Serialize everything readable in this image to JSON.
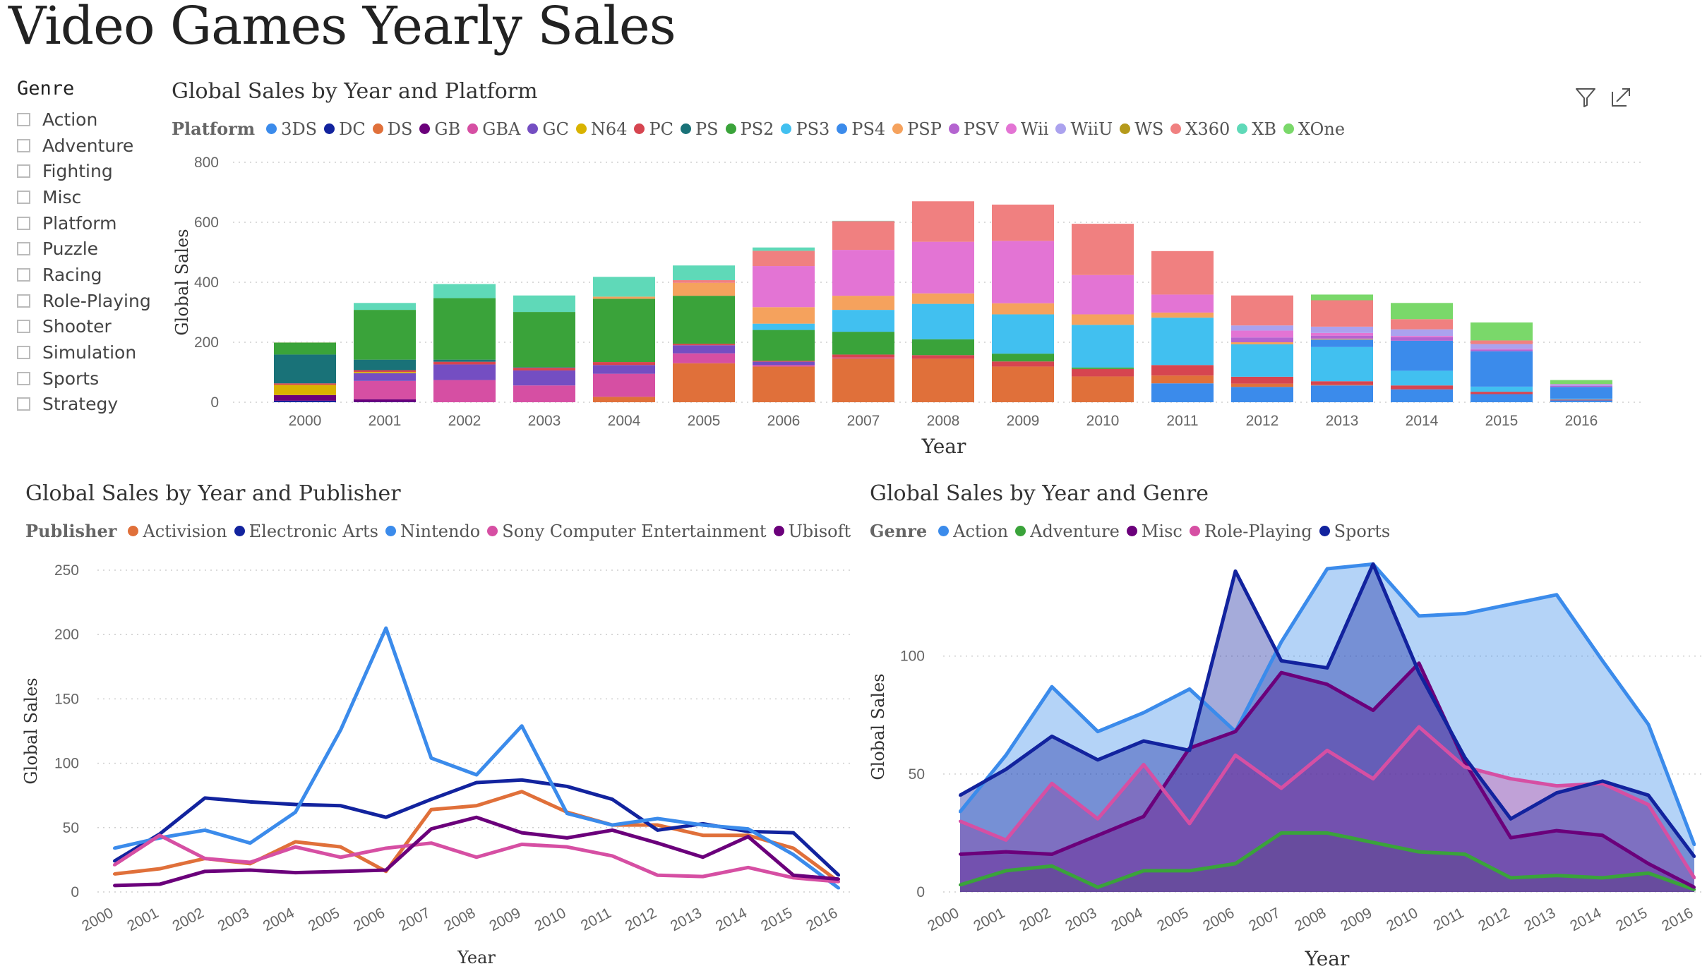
{
  "title": "Video Games Yearly Sales",
  "slicer": {
    "title": "Genre",
    "items": [
      "Action",
      "Adventure",
      "Fighting",
      "Misc",
      "Platform",
      "Puzzle",
      "Racing",
      "Role-Playing",
      "Shooter",
      "Simulation",
      "Sports",
      "Strategy"
    ]
  },
  "icons": [
    "filter-icon",
    "focus-mode-icon"
  ],
  "chart_data": [
    {
      "type": "bar",
      "stacked": true,
      "title": "Global Sales by Year and Platform",
      "legend_title": "Platform",
      "legend_position": "top",
      "xlabel": "Year",
      "ylabel": "Global Sales",
      "ylim": [
        0,
        800
      ],
      "yticks": [
        0,
        200,
        400,
        600,
        800
      ],
      "grid": true,
      "categories": [
        "2000",
        "2001",
        "2002",
        "2003",
        "2004",
        "2005",
        "2006",
        "2007",
        "2008",
        "2009",
        "2010",
        "2011",
        "2012",
        "2013",
        "2014",
        "2015",
        "2016"
      ],
      "series": [
        {
          "name": "3DS",
          "color": "#3b8beb",
          "values": [
            0,
            0,
            0,
            0,
            0,
            0,
            0,
            0,
            0,
            0,
            0,
            63,
            51,
            56,
            43,
            27,
            6
          ]
        },
        {
          "name": "DC",
          "color": "#12239e",
          "values": [
            5,
            1,
            0,
            0,
            0,
            0,
            0,
            0,
            0,
            0,
            0,
            0,
            0,
            0,
            0,
            0,
            0
          ]
        },
        {
          "name": "DS",
          "color": "#e0703a",
          "values": [
            0,
            0,
            0,
            0,
            18,
            130,
            119,
            146,
            145,
            119,
            86,
            26,
            11,
            2,
            0,
            0,
            0
          ]
        },
        {
          "name": "GB",
          "color": "#6b007b",
          "values": [
            19,
            9,
            0,
            0,
            0,
            0,
            0,
            0,
            0,
            0,
            0,
            0,
            0,
            0,
            0,
            0,
            0
          ]
        },
        {
          "name": "GBA",
          "color": "#d64fa3",
          "values": [
            0,
            61,
            74,
            56,
            77,
            33,
            5,
            3,
            0,
            0,
            0,
            0,
            0,
            0,
            0,
            0,
            0
          ]
        },
        {
          "name": "GC",
          "color": "#744ec2",
          "values": [
            0,
            26,
            52,
            50,
            29,
            27,
            11,
            0,
            0,
            0,
            0,
            0,
            0,
            0,
            0,
            0,
            0
          ]
        },
        {
          "name": "N64",
          "color": "#d9b300",
          "values": [
            34,
            4,
            0,
            0,
            0,
            0,
            0,
            0,
            0,
            0,
            0,
            0,
            0,
            0,
            0,
            0,
            0
          ]
        },
        {
          "name": "PC",
          "color": "#d64550",
          "values": [
            5,
            6,
            9,
            9,
            10,
            5,
            3,
            10,
            12,
            17,
            25,
            35,
            23,
            12,
            13,
            8,
            3
          ]
        },
        {
          "name": "PS",
          "color": "#197278",
          "values": [
            96,
            35,
            7,
            2,
            0,
            0,
            0,
            0,
            0,
            0,
            0,
            0,
            0,
            0,
            0,
            0,
            0
          ]
        },
        {
          "name": "PS2",
          "color": "#3aa33a",
          "values": [
            39,
            166,
            205,
            184,
            211,
            160,
            103,
            76,
            53,
            26,
            5,
            0,
            0,
            0,
            0,
            0,
            0
          ]
        },
        {
          "name": "PS3",
          "color": "#41c0f0",
          "values": [
            0,
            0,
            0,
            0,
            0,
            0,
            21,
            73,
            118,
            131,
            142,
            158,
            108,
            114,
            49,
            17,
            3
          ]
        },
        {
          "name": "PS4",
          "color": "#3b8beb",
          "values": [
            0,
            0,
            0,
            0,
            0,
            0,
            0,
            0,
            0,
            0,
            0,
            0,
            0,
            25,
            100,
            118,
            39
          ]
        },
        {
          "name": "PSP",
          "color": "#f5a25d",
          "values": [
            0,
            0,
            0,
            0,
            7,
            43,
            55,
            47,
            35,
            37,
            35,
            17,
            7,
            3,
            0,
            0,
            0
          ]
        },
        {
          "name": "PSV",
          "color": "#b464d0",
          "values": [
            0,
            0,
            0,
            0,
            0,
            0,
            0,
            0,
            0,
            0,
            0,
            0,
            16,
            10,
            12,
            6,
            4
          ]
        },
        {
          "name": "Wii",
          "color": "#e374d4",
          "values": [
            0,
            0,
            0,
            0,
            0,
            0,
            137,
            153,
            172,
            208,
            131,
            60,
            23,
            9,
            4,
            2,
            0
          ]
        },
        {
          "name": "WiiU",
          "color": "#aba2ee",
          "values": [
            0,
            0,
            0,
            0,
            0,
            0,
            0,
            0,
            0,
            0,
            0,
            0,
            17,
            21,
            22,
            16,
            5
          ]
        },
        {
          "name": "WS",
          "color": "#b59a1b",
          "values": [
            1,
            0,
            0,
            0,
            0,
            0,
            0,
            0,
            0,
            0,
            0,
            0,
            0,
            0,
            0,
            0,
            0
          ]
        },
        {
          "name": "X360",
          "color": "#f08080",
          "values": [
            0,
            0,
            0,
            0,
            0,
            9,
            51,
            96,
            135,
            121,
            171,
            145,
            100,
            88,
            34,
            12,
            1
          ]
        },
        {
          "name": "XB",
          "color": "#5fd9b8",
          "values": [
            1,
            23,
            47,
            55,
            66,
            49,
            11,
            1,
            0,
            0,
            0,
            0,
            0,
            0,
            0,
            0,
            0
          ]
        },
        {
          "name": "XOne",
          "color": "#7ad86a",
          "values": [
            0,
            0,
            0,
            0,
            0,
            0,
            0,
            0,
            0,
            0,
            0,
            0,
            0,
            19,
            54,
            60,
            13
          ]
        }
      ]
    },
    {
      "type": "line",
      "title": "Global Sales by Year and Publisher",
      "legend_title": "Publisher",
      "legend_position": "top",
      "xlabel": "Year",
      "ylabel": "Global Sales",
      "ylim": [
        0,
        250
      ],
      "yticks": [
        0,
        50,
        100,
        150,
        200,
        250
      ],
      "grid": true,
      "x": [
        "2000",
        "2001",
        "2002",
        "2003",
        "2004",
        "2005",
        "2006",
        "2007",
        "2008",
        "2009",
        "2010",
        "2011",
        "2012",
        "2013",
        "2014",
        "2015",
        "2016"
      ],
      "series": [
        {
          "name": "Activision",
          "color": "#e0703a",
          "values": [
            14,
            18,
            26,
            22,
            39,
            35,
            16,
            64,
            67,
            78,
            62,
            52,
            52,
            44,
            44,
            34,
            8
          ]
        },
        {
          "name": "Electronic Arts",
          "color": "#12239e",
          "values": [
            24,
            45,
            73,
            70,
            68,
            67,
            58,
            72,
            85,
            87,
            82,
            72,
            48,
            53,
            47,
            46,
            13
          ]
        },
        {
          "name": "Nintendo",
          "color": "#3b8beb",
          "values": [
            34,
            42,
            48,
            38,
            62,
            126,
            205,
            104,
            91,
            129,
            61,
            52,
            57,
            52,
            49,
            29,
            3
          ]
        },
        {
          "name": "Sony Computer Entertainment",
          "color": "#d64fa3",
          "values": [
            21,
            44,
            26,
            23,
            35,
            27,
            34,
            38,
            27,
            37,
            35,
            28,
            13,
            12,
            19,
            11,
            8
          ]
        },
        {
          "name": "Ubisoft",
          "color": "#6b007b",
          "values": [
            5,
            6,
            16,
            17,
            15,
            16,
            17,
            49,
            58,
            46,
            42,
            48,
            38,
            27,
            43,
            13,
            10
          ]
        }
      ]
    },
    {
      "type": "area",
      "title": "Global Sales by Year and Genre",
      "legend_title": "Genre",
      "legend_position": "top",
      "xlabel": "Year",
      "ylabel": "Global Sales",
      "ylim": [
        0,
        140
      ],
      "yticks": [
        0,
        50,
        100
      ],
      "grid": true,
      "x": [
        "2000",
        "2001",
        "2002",
        "2003",
        "2004",
        "2005",
        "2006",
        "2007",
        "2008",
        "2009",
        "2010",
        "2011",
        "2012",
        "2013",
        "2014",
        "2015",
        "2016"
      ],
      "series": [
        {
          "name": "Action",
          "color": "#3b8beb",
          "values": [
            34,
            58,
            87,
            68,
            76,
            86,
            68,
            106,
            137,
            139,
            117,
            118,
            122,
            126,
            98,
            71,
            20
          ]
        },
        {
          "name": "Adventure",
          "color": "#3aa33a",
          "values": [
            3,
            9,
            11,
            2,
            9,
            9,
            12,
            25,
            25,
            21,
            17,
            16,
            6,
            7,
            6,
            8,
            1
          ]
        },
        {
          "name": "Misc",
          "color": "#6b007b",
          "values": [
            16,
            17,
            16,
            24,
            32,
            61,
            68,
            93,
            88,
            77,
            97,
            55,
            23,
            26,
            24,
            12,
            2
          ]
        },
        {
          "name": "Role-Playing",
          "color": "#d64fa3",
          "values": [
            30,
            22,
            46,
            31,
            54,
            29,
            58,
            44,
            60,
            48,
            70,
            53,
            48,
            45,
            46,
            37,
            6
          ]
        },
        {
          "name": "Sports",
          "color": "#12239e",
          "values": [
            41,
            52,
            66,
            56,
            64,
            60,
            136,
            98,
            95,
            139,
            93,
            57,
            31,
            42,
            47,
            41,
            15
          ]
        }
      ]
    }
  ]
}
